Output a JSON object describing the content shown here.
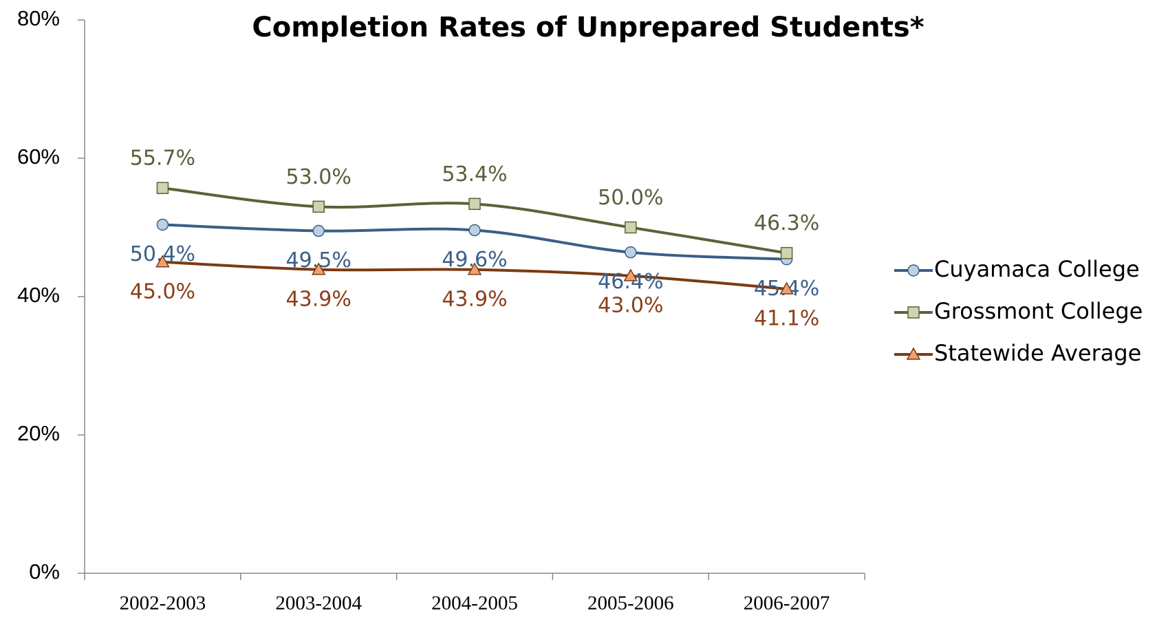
{
  "chart_data": {
    "type": "line",
    "title": "Completion Rates of Unprepared Students*",
    "categories": [
      "2002-2003",
      "2003-2004",
      "2004-2005",
      "2005-2006",
      "2006-2007"
    ],
    "series": [
      {
        "name": "Cuyamaca College",
        "color": "#3a5f86",
        "marker": "circle",
        "marker_color": "#bcd0e6",
        "label_color": "#3b5f8a",
        "label_position": "below",
        "values": [
          50.4,
          49.5,
          49.6,
          46.4,
          45.4
        ],
        "value_labels": [
          "50.4%",
          "49.5%",
          "49.6%",
          "46.4%",
          "45.4%"
        ]
      },
      {
        "name": "Grossmont College",
        "color": "#5a6339",
        "marker": "square",
        "marker_color": "#d0d3b0",
        "label_color": "#5a5f3a",
        "label_position": "above",
        "values": [
          55.7,
          53.0,
          53.4,
          50.0,
          46.3
        ],
        "value_labels": [
          "55.7%",
          "53.0%",
          "53.4%",
          "50.0%",
          "46.3%"
        ]
      },
      {
        "name": "Statewide Average",
        "color": "#7b3a12",
        "marker": "triangle",
        "marker_color": "#f0a070",
        "label_color": "#8a3f1a",
        "label_position": "below",
        "values": [
          45.0,
          43.9,
          43.9,
          43.0,
          41.1
        ],
        "value_labels": [
          "45.0%",
          "43.9%",
          "43.9%",
          "43.0%",
          "41.1%"
        ]
      }
    ],
    "ylim": [
      0,
      80
    ],
    "yticks": [
      {
        "value": 0,
        "label": "0%"
      },
      {
        "value": 20,
        "label": "20%"
      },
      {
        "value": 40,
        "label": "40%"
      },
      {
        "value": 60,
        "label": "60%"
      },
      {
        "value": 80,
        "label": "80%"
      }
    ],
    "grid": false,
    "legend": "right",
    "smooth": true
  }
}
